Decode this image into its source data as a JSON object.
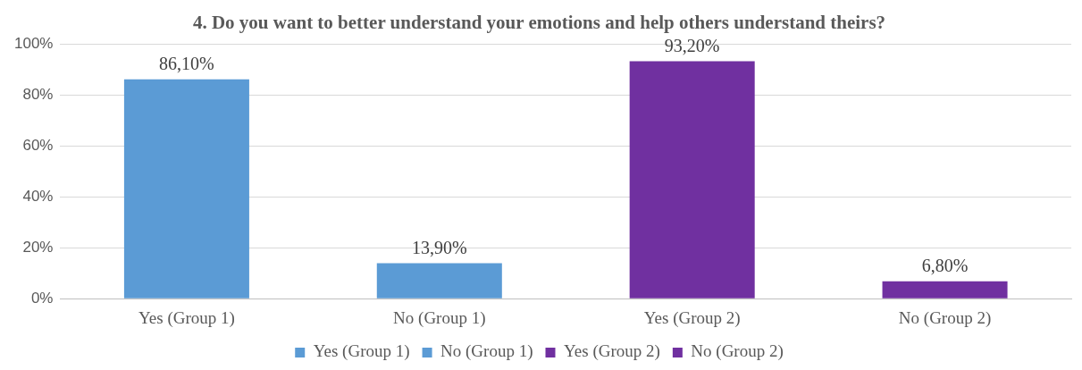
{
  "chart_data": {
    "type": "bar",
    "title": "4. Do you want to better understand your emotions and help others understand theirs?",
    "categories": [
      "Yes (Group 1)",
      "No (Group 1)",
      "Yes (Group 2)",
      "No (Group 2)"
    ],
    "series": [
      {
        "name": "Yes (Group 1)",
        "color": "#5b9bd5",
        "values": [
          86.1,
          null,
          null,
          null
        ],
        "value_labels": [
          "86,10%",
          null,
          null,
          null
        ]
      },
      {
        "name": "No (Group 1)",
        "color": "#5b9bd5",
        "values": [
          null,
          13.9,
          null,
          null
        ],
        "value_labels": [
          null,
          "13,90%",
          null,
          null
        ]
      },
      {
        "name": "Yes (Group 2)",
        "color": "#7030a0",
        "values": [
          null,
          null,
          93.2,
          null
        ],
        "value_labels": [
          null,
          null,
          "93,20%",
          null
        ]
      },
      {
        "name": "No (Group 2)",
        "color": "#7030a0",
        "values": [
          null,
          null,
          null,
          6.8
        ],
        "value_labels": [
          null,
          null,
          null,
          "6,80%"
        ]
      }
    ],
    "ylim": [
      0,
      100
    ],
    "yticks": [
      {
        "value": 0,
        "label": "0%"
      },
      {
        "value": 20,
        "label": "20%"
      },
      {
        "value": 40,
        "label": "40%"
      },
      {
        "value": 60,
        "label": "60%"
      },
      {
        "value": 80,
        "label": "80%"
      },
      {
        "value": 100,
        "label": "100%"
      }
    ],
    "grid": "y",
    "legend": "bottom"
  }
}
